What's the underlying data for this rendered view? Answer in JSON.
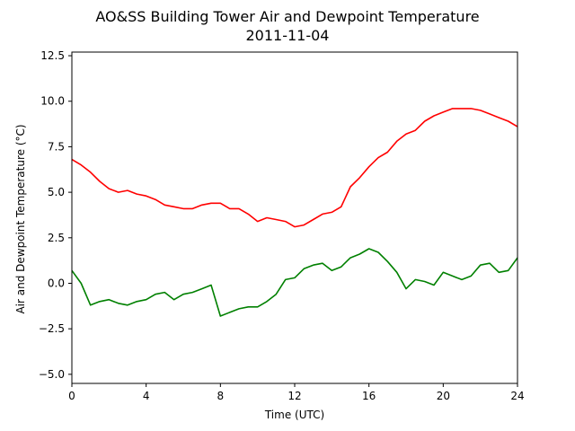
{
  "chart_data": {
    "type": "line",
    "title": "AO&SS Building Tower Air and Dewpoint Temperature",
    "subtitle": "2011-11-04",
    "xlabel": "Time (UTC)",
    "ylabel": "Air and Dewpoint Temperature (°C)",
    "xlim": [
      0,
      24
    ],
    "ylim": [
      -5.5,
      12.7
    ],
    "xticks": [
      0,
      4,
      8,
      12,
      16,
      20,
      24
    ],
    "xtick_labels": [
      "0",
      "4",
      "8",
      "12",
      "16",
      "20",
      "24"
    ],
    "yticks": [
      -5.0,
      -2.5,
      0.0,
      2.5,
      5.0,
      7.5,
      10.0,
      12.5
    ],
    "ytick_labels": [
      "−5.0",
      "−2.5",
      "0.0",
      "2.5",
      "5.0",
      "7.5",
      "10.0",
      "12.5"
    ],
    "grid": false,
    "series": [
      {
        "color": "#ff0000",
        "x": [
          0,
          0.5,
          1,
          1.5,
          2,
          2.5,
          3,
          3.5,
          4,
          4.5,
          5,
          5.5,
          6,
          6.5,
          7,
          7.5,
          8,
          8.5,
          9,
          9.5,
          10,
          10.5,
          11,
          11.5,
          12,
          12.5,
          13,
          13.5,
          14,
          14.5,
          15,
          15.5,
          16,
          16.5,
          17,
          17.5,
          18,
          18.5,
          19,
          19.5,
          20,
          20.5,
          21,
          21.5,
          22,
          22.5,
          23,
          23.5,
          24
        ],
        "y": [
          6.8,
          6.5,
          6.1,
          5.6,
          5.2,
          5.0,
          5.1,
          4.9,
          4.8,
          4.6,
          4.3,
          4.2,
          4.1,
          4.1,
          4.3,
          4.4,
          4.4,
          4.1,
          4.1,
          3.8,
          3.4,
          3.6,
          3.5,
          3.4,
          3.1,
          3.2,
          3.5,
          3.8,
          3.9,
          4.2,
          5.3,
          5.8,
          6.4,
          6.9,
          7.2,
          7.8,
          8.2,
          8.4,
          8.9,
          9.2,
          9.4,
          9.6,
          9.6,
          9.6,
          9.5,
          9.3,
          9.1,
          8.9,
          8.6
        ]
      },
      {
        "color": "#008000",
        "x": [
          0,
          0.5,
          1,
          1.5,
          2,
          2.5,
          3,
          3.5,
          4,
          4.5,
          5,
          5.5,
          6,
          6.5,
          7,
          7.5,
          8,
          8.5,
          9,
          9.5,
          10,
          10.5,
          11,
          11.5,
          12,
          12.5,
          13,
          13.5,
          14,
          14.5,
          15,
          15.5,
          16,
          16.5,
          17,
          17.5,
          18,
          18.5,
          19,
          19.5,
          20,
          20.5,
          21,
          21.5,
          22,
          22.5,
          23,
          23.5,
          24
        ],
        "y": [
          0.7,
          0.0,
          -1.2,
          -1.0,
          -0.9,
          -1.1,
          -1.2,
          -1.0,
          -0.9,
          -0.6,
          -0.5,
          -0.9,
          -0.6,
          -0.5,
          -0.3,
          -0.1,
          -1.8,
          -1.6,
          -1.4,
          -1.3,
          -1.3,
          -1.0,
          -0.6,
          0.2,
          0.3,
          0.8,
          1.0,
          1.1,
          0.7,
          0.9,
          1.4,
          1.6,
          1.9,
          1.7,
          1.2,
          0.6,
          -0.3,
          0.2,
          0.1,
          -0.1,
          0.6,
          0.4,
          0.2,
          0.4,
          1.0,
          1.1,
          0.6,
          0.7,
          1.4
        ]
      }
    ]
  }
}
